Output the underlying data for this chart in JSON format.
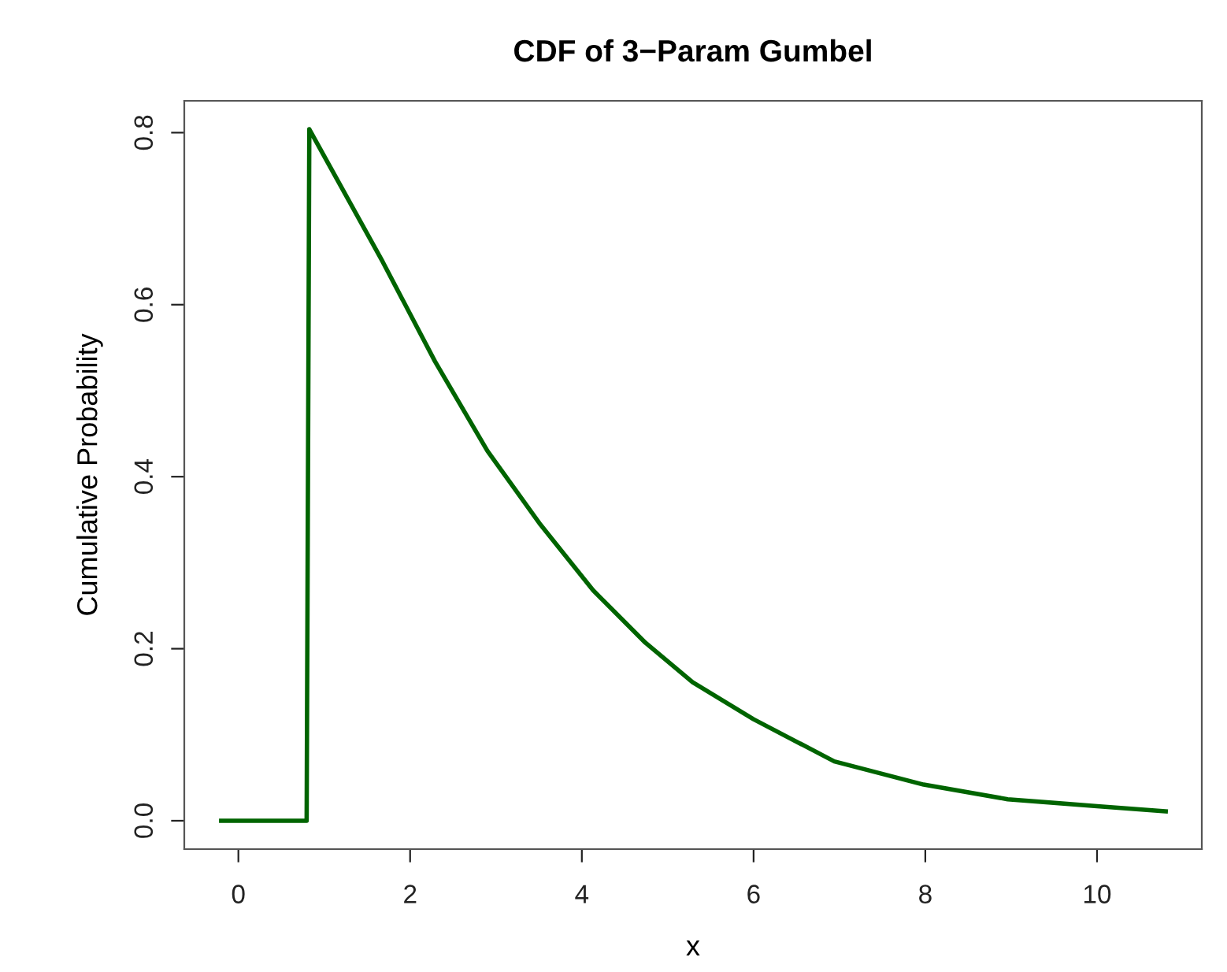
{
  "chart_data": {
    "type": "line",
    "title": "CDF of 3−Param Gumbel",
    "xlabel": "x",
    "ylabel": "Cumulative Probability",
    "series": [
      {
        "color": "#006400",
        "x": [
          -0.2,
          0.795,
          0.826,
          1.07,
          1.68,
          2.29,
          2.9,
          3.52,
          4.13,
          4.74,
          5.29,
          6.0,
          6.94,
          7.98,
          8.96,
          10.0,
          10.8
        ],
        "values": [
          0,
          0,
          0.804,
          0.76,
          0.65,
          0.534,
          0.43,
          0.344,
          0.268,
          0.207,
          0.161,
          0.118,
          0.069,
          0.042,
          0.025,
          0.017,
          0.011
        ]
      }
    ],
    "xlim": [
      -0.63,
      11.22
    ],
    "ylim": [
      -0.033,
      0.837
    ],
    "xticks": [
      0,
      2,
      4,
      6,
      8,
      10
    ],
    "yticks": [
      {
        "value": 0,
        "label": "0.0"
      },
      {
        "value": 0.2,
        "label": "0.2"
      },
      {
        "value": 0.4,
        "label": "0.4"
      },
      {
        "value": 0.6,
        "label": "0.6"
      },
      {
        "value": 0.8,
        "label": "0.8"
      }
    ],
    "grid": false,
    "legend": false,
    "marker": "none",
    "line_style": "solid"
  }
}
